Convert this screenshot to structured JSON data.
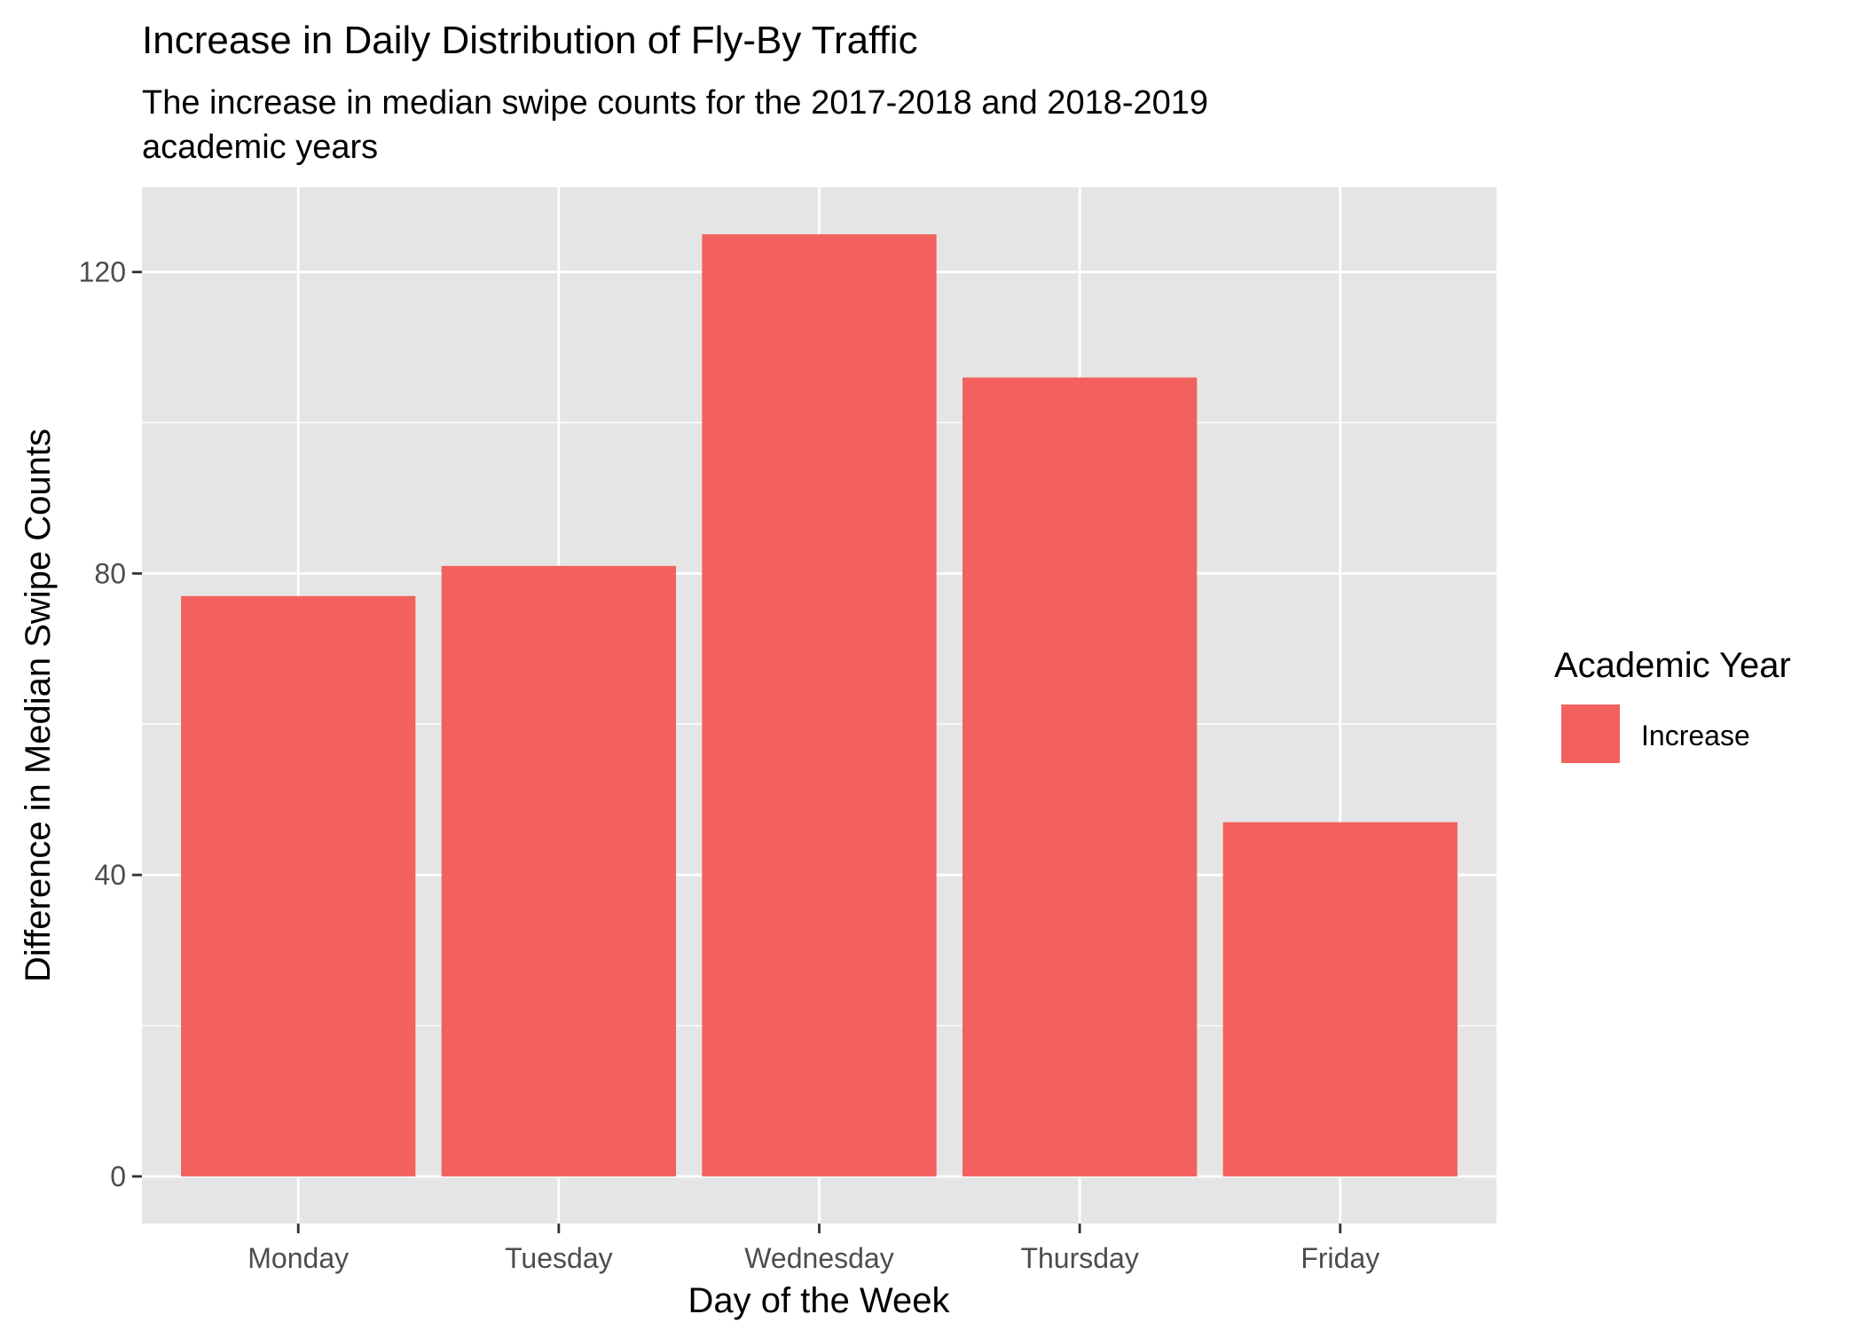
{
  "chart_data": {
    "type": "bar",
    "title": "Increase in Daily Distribution of Fly-By Traffic",
    "subtitle_lines": [
      "The increase in median swipe counts for the 2017-2018 and 2018-2019",
      "academic years"
    ],
    "xlabel": "Day of the Week",
    "ylabel": "Difference in Median Swipe Counts",
    "categories": [
      "Monday",
      "Tuesday",
      "Wednesday",
      "Thursday",
      "Friday"
    ],
    "series": [
      {
        "name": "Increase",
        "values": [
          77,
          81,
          125,
          106,
          47
        ]
      }
    ],
    "ylim": [
      -6.25,
      131.25
    ],
    "yticks": [
      0,
      40,
      80,
      120
    ],
    "ytick_labels": [
      "0",
      "40",
      "80",
      "120"
    ],
    "grid": true,
    "legend": {
      "title": "Academic Year",
      "position": "right",
      "entries": [
        "Increase"
      ]
    },
    "colors": {
      "bar": "#F2615D",
      "panel": "#E5E5E5",
      "grid": "#FFFFFF",
      "tick_text": "#4D4D4D",
      "text": "#000000"
    }
  }
}
